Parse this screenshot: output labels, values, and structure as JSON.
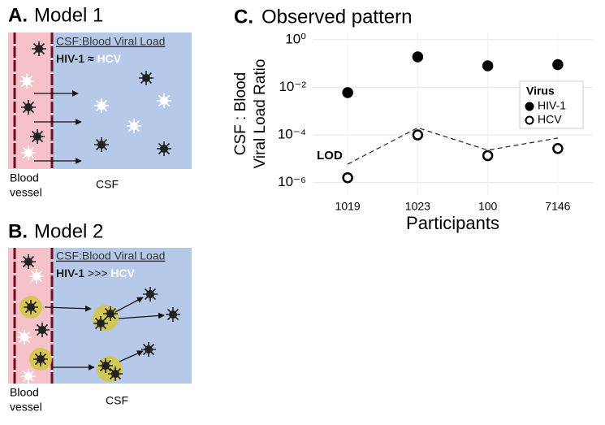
{
  "panels": [
    {
      "letter": "A.",
      "title": "Model 1",
      "heading": "CSF:Blood Viral Load",
      "comparison": {
        "left": "HIV-1",
        "op": "≈",
        "right": "HCV"
      },
      "vessel_label": [
        "Blood",
        "vessel"
      ],
      "csf_label": "CSF"
    },
    {
      "letter": "B.",
      "title": "Model 2",
      "heading": "CSF:Blood Viral Load",
      "comparison": {
        "left": "HIV-1",
        "op": ">>>",
        "right": "HCV"
      },
      "vessel_label": [
        "Blood",
        "vessel"
      ],
      "csf_label": "CSF"
    }
  ],
  "chart_data": {
    "type": "scatter",
    "panel_letter": "C.",
    "title": "Observed pattern",
    "xlabel": "Participants",
    "ylabel": [
      "CSF : Blood",
      "Viral Load Ratio"
    ],
    "categories": [
      "1019",
      "1023",
      "100",
      "7146"
    ],
    "series": [
      {
        "name": "HIV-1",
        "color": "#000000",
        "marker": "filled",
        "values": [
          0.006,
          0.19,
          0.08,
          0.09
        ]
      },
      {
        "name": "HCV",
        "color": "#000000",
        "marker": "open",
        "values": [
          1.6e-06,
          0.0001,
          1.35e-05,
          2.7e-05
        ]
      }
    ],
    "lod_line": {
      "label": "LOD",
      "values": [
        5.9e-06,
        0.0002,
        2.3e-05,
        7.4e-05
      ]
    },
    "ylim": [
      3e-07,
      2
    ],
    "log_y": true,
    "yticks": [
      {
        "value": 1,
        "label": "10⁰"
      },
      {
        "value": 0.01,
        "label": "10⁻²"
      },
      {
        "value": 0.0001,
        "label": "10⁻⁴"
      },
      {
        "value": 1e-06,
        "label": "10⁻⁶"
      }
    ],
    "grid": true,
    "legend_title": "Virus",
    "legend_position": "right"
  }
}
